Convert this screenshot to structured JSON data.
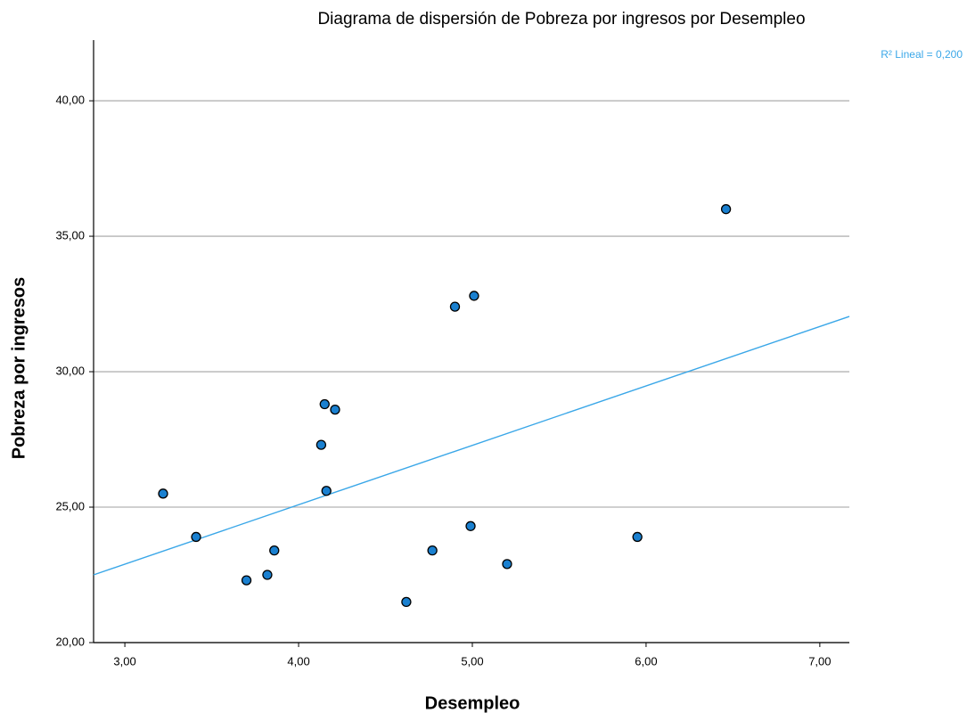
{
  "chart_data": {
    "type": "scatter",
    "title": "Diagrama de dispersión de Pobreza por ingresos por Desempleo",
    "x_label": "Desempleo",
    "y_label": "Pobreza por ingresos",
    "fit_label": "R² Lineal = 0,200",
    "xlim": [
      2.82,
      7.17
    ],
    "ylim": [
      20,
      42.24
    ],
    "xticks": [
      {
        "value": 3,
        "label": "3,00"
      },
      {
        "value": 4,
        "label": "4,00"
      },
      {
        "value": 5,
        "label": "5,00"
      },
      {
        "value": 6,
        "label": "6,00"
      },
      {
        "value": 7,
        "label": "7,00"
      }
    ],
    "yticks": [
      {
        "value": 20,
        "label": "20,00"
      },
      {
        "value": 25,
        "label": "25,00"
      },
      {
        "value": 30,
        "label": "30,00"
      },
      {
        "value": 35,
        "label": "35,00"
      },
      {
        "value": 40,
        "label": "40,00"
      }
    ],
    "grid": true,
    "series": [
      {
        "color": "#1a80d0",
        "x": [
          3.22,
          3.41,
          3.7,
          3.82,
          3.86,
          4.13,
          4.15,
          4.21,
          4.16,
          4.62,
          4.77,
          4.9,
          5.01,
          4.99,
          5.2,
          5.95,
          6.46
        ],
        "values": [
          25.5,
          23.9,
          22.3,
          22.5,
          23.4,
          27.3,
          28.8,
          28.6,
          25.6,
          21.5,
          23.4,
          32.4,
          32.8,
          24.3,
          22.9,
          23.9,
          36.0
        ]
      }
    ],
    "fit_line": {
      "color": "#3aa7e8",
      "x": [
        2.82,
        7.17
      ],
      "values": [
        22.5,
        32.04
      ]
    }
  }
}
